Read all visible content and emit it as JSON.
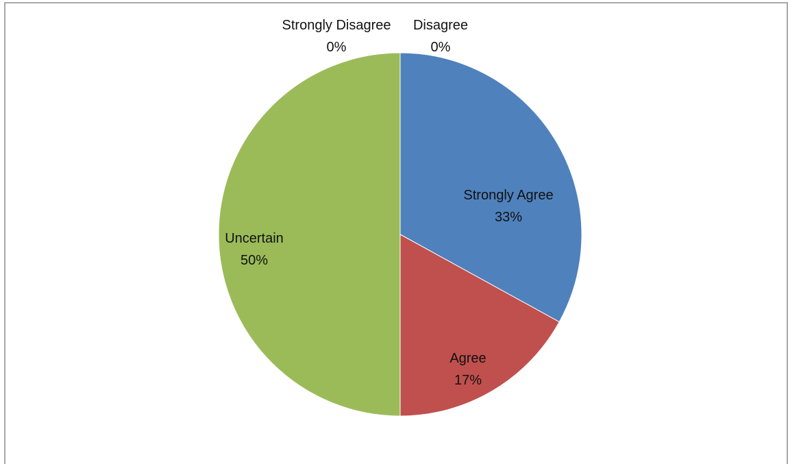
{
  "chart_data": {
    "type": "pie",
    "title": "",
    "legend": "none",
    "slices": [
      {
        "name": "Strongly Agree",
        "value": 33,
        "label": "33%",
        "color": "#4F81BD"
      },
      {
        "name": "Agree",
        "value": 17,
        "label": "17%",
        "color": "#C0504D"
      },
      {
        "name": "Uncertain",
        "value": 50,
        "label": "50%",
        "color": "#9BBB59"
      },
      {
        "name": "Strongly Disagree",
        "value": 0,
        "label": "0%",
        "color": "#8064A2"
      },
      {
        "name": "Disagree",
        "value": 0,
        "label": "0%",
        "color": "#4BACC6"
      }
    ]
  }
}
